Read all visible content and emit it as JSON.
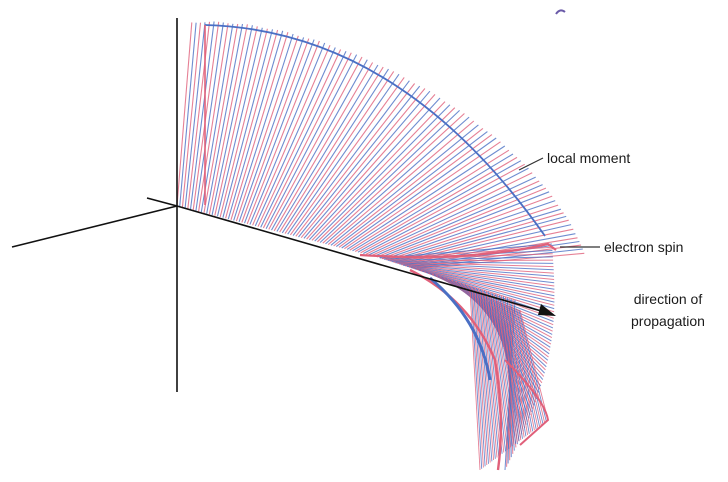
{
  "labels": {
    "local_moment": "local moment",
    "electron_spin": "electron spin",
    "direction_of_propagation_line1": "direction of",
    "direction_of_propagation_line2": "propagation"
  },
  "colors": {
    "axes": "#111111",
    "blue_strand": "#4a6fc4",
    "red_strand": "#e0607a",
    "annotation_line": "#333333"
  }
}
